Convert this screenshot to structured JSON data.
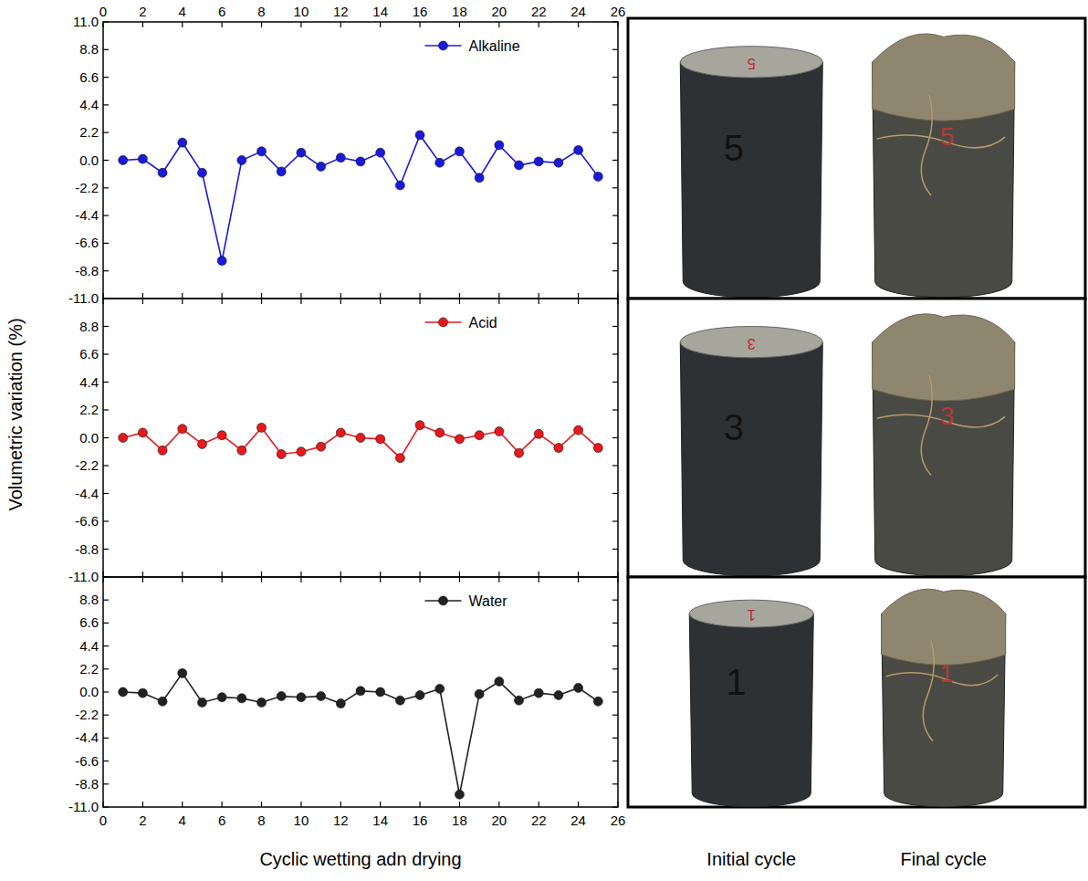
{
  "chart_data": [
    {
      "type": "line",
      "x": [
        1,
        2,
        3,
        4,
        5,
        6,
        7,
        8,
        9,
        10,
        11,
        12,
        13,
        14,
        15,
        16,
        17,
        18,
        19,
        20,
        21,
        22,
        23,
        24,
        25
      ],
      "xlim": [
        0,
        26
      ],
      "xticks": [
        0,
        2,
        4,
        6,
        8,
        10,
        12,
        14,
        16,
        18,
        20,
        22,
        24,
        26
      ],
      "ylim": [
        -11,
        11
      ],
      "yticks": [
        {
          "value": 11,
          "label": "11.0"
        },
        8.8,
        6.6,
        4.4,
        2.2,
        {
          "value": 0,
          "label": "0.0"
        },
        -2.2,
        -4.4,
        -6.6,
        -8.8,
        {
          "value": -11,
          "label": "-11.0"
        }
      ],
      "tick_labels": true,
      "legend": "upper right",
      "grid": false,
      "series": [
        {
          "name": "Alkaline",
          "color": "#1a1adc",
          "marker": "circle",
          "values": [
            0.0,
            0.1,
            -1.0,
            1.4,
            -1.0,
            -8.0,
            0.0,
            0.7,
            -0.9,
            0.6,
            -0.5,
            0.2,
            -0.1,
            0.6,
            -2.0,
            2.0,
            -0.2,
            0.7,
            -1.4,
            1.2,
            -0.4,
            -0.1,
            -0.2,
            0.8,
            -1.3
          ]
        }
      ]
    },
    {
      "type": "line",
      "ylabel": "Volumetric variation (%)",
      "x": [
        1,
        2,
        3,
        4,
        5,
        6,
        7,
        8,
        9,
        10,
        11,
        12,
        13,
        14,
        15,
        16,
        17,
        18,
        19,
        20,
        21,
        22,
        23,
        24,
        25
      ],
      "xlim": [
        0,
        26
      ],
      "xticks": [
        0,
        2,
        4,
        6,
        8,
        10,
        12,
        14,
        16,
        18,
        20,
        22,
        24,
        26
      ],
      "ylim": [
        -11,
        11
      ],
      "yticks": [
        8.8,
        6.6,
        4.4,
        2.2,
        {
          "value": 0,
          "label": "0.0"
        },
        -2.2,
        -4.4,
        -6.6,
        -8.8,
        {
          "value": -11,
          "label": "-11.0"
        }
      ],
      "tick_labels": "y",
      "legend": "upper right",
      "grid": false,
      "series": [
        {
          "name": "Acid",
          "color": "#e8191c",
          "marker": "circle",
          "values": [
            0.0,
            0.4,
            -1.0,
            0.7,
            -0.5,
            0.2,
            -1.0,
            0.8,
            -1.3,
            -1.1,
            -0.7,
            0.4,
            0.0,
            -0.1,
            -1.6,
            1.0,
            0.4,
            -0.1,
            0.2,
            0.5,
            -1.2,
            0.3,
            -0.8,
            0.6,
            -0.8
          ]
        }
      ]
    },
    {
      "type": "line",
      "xlabel": "Cyclic wetting adn drying",
      "x": [
        1,
        2,
        3,
        4,
        5,
        6,
        7,
        8,
        9,
        10,
        11,
        12,
        13,
        14,
        15,
        16,
        17,
        18,
        19,
        20,
        21,
        22,
        23,
        24,
        25
      ],
      "xlim": [
        0,
        26
      ],
      "xticks": [
        0,
        2,
        4,
        6,
        8,
        10,
        12,
        14,
        16,
        18,
        20,
        22,
        24,
        26
      ],
      "ylim": [
        -11,
        11
      ],
      "yticks": [
        8.8,
        6.6,
        4.4,
        2.2,
        {
          "value": 0,
          "label": "0.0"
        },
        -2.2,
        -4.4,
        -6.6,
        -8.8,
        {
          "value": -11,
          "label": "-11.0"
        }
      ],
      "tick_labels": true,
      "legend": "upper right",
      "grid": false,
      "series": [
        {
          "name": "Water",
          "color": "#222222",
          "marker": "circle",
          "values": [
            0.0,
            -0.1,
            -0.9,
            1.8,
            -1.0,
            -0.5,
            -0.6,
            -1.0,
            -0.4,
            -0.5,
            -0.4,
            -1.1,
            0.1,
            0.0,
            -0.8,
            -0.3,
            0.3,
            -9.8,
            -0.2,
            1.0,
            -0.8,
            -0.1,
            -0.3,
            0.4,
            -0.9
          ]
        }
      ]
    }
  ],
  "photos": {
    "captions": [
      "Initial cycle",
      "Final cycle"
    ],
    "specimens": [
      "5",
      "3",
      "1"
    ]
  }
}
